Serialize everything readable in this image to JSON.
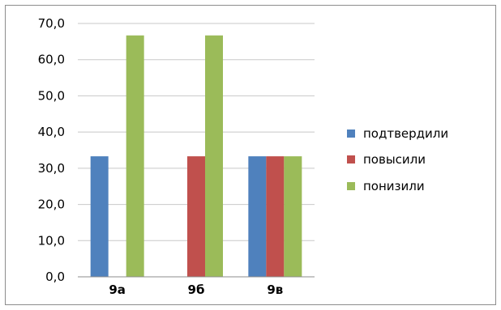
{
  "chart_data": {
    "type": "bar",
    "categories": [
      "9а",
      "9б",
      "9в"
    ],
    "series": [
      {
        "name": "подтвердили",
        "color": "#4f81bd",
        "values": [
          33.3,
          0,
          33.3
        ]
      },
      {
        "name": "повысили",
        "color": "#c0504d",
        "values": [
          0,
          33.3,
          33.3
        ]
      },
      {
        "name": "понизили",
        "color": "#9bbb59",
        "values": [
          66.7,
          66.7,
          33.3
        ]
      }
    ],
    "yticks": [
      "0,0",
      "10,0",
      "20,0",
      "30,0",
      "40,0",
      "50,0",
      "60,0",
      "70,0"
    ],
    "ylim": [
      0,
      70
    ],
    "grid": true,
    "legend_position": "right"
  }
}
